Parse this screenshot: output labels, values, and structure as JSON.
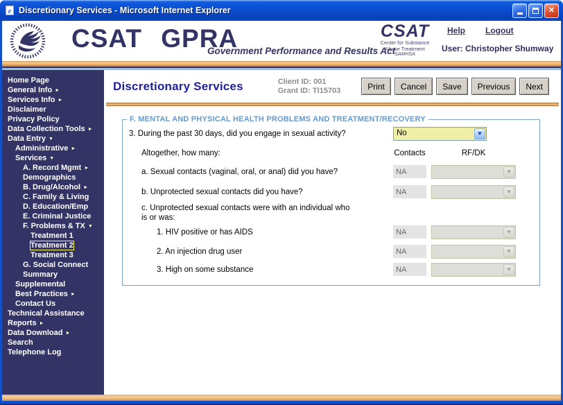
{
  "window": {
    "title": "Discretionary Services - Microsoft Internet Explorer"
  },
  "header": {
    "brand": "CSAT GPRA",
    "tagline": "Government Performance and Results Act",
    "seal": {
      "acronym": "CSAT",
      "line1": "Center for Substance",
      "line2": "Abuse Treatment",
      "line3": "SAMHSA"
    },
    "help": "Help",
    "logout": "Logout",
    "user": "User: Christopher Shumway"
  },
  "sidebar": {
    "items": [
      {
        "label": "Home Page",
        "level": 0,
        "arrow": "",
        "selected": false
      },
      {
        "label": "General Info",
        "level": 0,
        "arrow": "right",
        "selected": false
      },
      {
        "label": "Services Info",
        "level": 0,
        "arrow": "right",
        "selected": false
      },
      {
        "label": "Disclaimer",
        "level": 0,
        "arrow": "",
        "selected": false
      },
      {
        "label": "Privacy Policy",
        "level": 0,
        "arrow": "",
        "selected": false
      },
      {
        "label": "Data Collection Tools",
        "level": 0,
        "arrow": "right",
        "selected": false
      },
      {
        "label": "Data Entry",
        "level": 0,
        "arrow": "down",
        "selected": false
      },
      {
        "label": "Administrative",
        "level": 1,
        "arrow": "right",
        "selected": false
      },
      {
        "label": "Services",
        "level": 1,
        "arrow": "down",
        "selected": false
      },
      {
        "label": "A. Record Mgmt",
        "level": 2,
        "arrow": "right",
        "selected": false
      },
      {
        "label": "Demographics",
        "level": 2,
        "arrow": "",
        "selected": false
      },
      {
        "label": "B. Drug/Alcohol",
        "level": 2,
        "arrow": "right",
        "selected": false
      },
      {
        "label": "C. Family & Living",
        "level": 2,
        "arrow": "",
        "selected": false
      },
      {
        "label": "D. Education/Emp",
        "level": 2,
        "arrow": "",
        "selected": false
      },
      {
        "label": "E. Criminal Justice",
        "level": 2,
        "arrow": "",
        "selected": false
      },
      {
        "label": "F. Problems & TX",
        "level": 2,
        "arrow": "down",
        "selected": false
      },
      {
        "label": "Treatment 1",
        "level": 3,
        "arrow": "",
        "selected": false
      },
      {
        "label": "Treatment 2",
        "level": 3,
        "arrow": "",
        "selected": true
      },
      {
        "label": "Treatment 3",
        "level": 3,
        "arrow": "",
        "selected": false
      },
      {
        "label": "G. Social Connect",
        "level": 2,
        "arrow": "",
        "selected": false
      },
      {
        "label": "Summary",
        "level": 2,
        "arrow": "",
        "selected": false
      },
      {
        "label": "Supplemental",
        "level": 1,
        "arrow": "",
        "selected": false
      },
      {
        "label": "Best Practices",
        "level": 1,
        "arrow": "right",
        "selected": false
      },
      {
        "label": "Contact Us",
        "level": 1,
        "arrow": "",
        "selected": false
      },
      {
        "label": "Technical Assistance",
        "level": 0,
        "arrow": "",
        "selected": false
      },
      {
        "label": "Reports",
        "level": 0,
        "arrow": "right",
        "selected": false
      },
      {
        "label": "Data Download",
        "level": 0,
        "arrow": "right",
        "selected": false
      },
      {
        "label": "Search",
        "level": 0,
        "arrow": "",
        "selected": false
      },
      {
        "label": "Telephone Log",
        "level": 0,
        "arrow": "",
        "selected": false
      }
    ]
  },
  "main": {
    "title": "Discretionary Services",
    "client_id": "Client ID: 001",
    "grant_id": "Grant ID: TI15703",
    "buttons": {
      "print": "Print",
      "cancel": "Cancel",
      "save": "Save",
      "previous": "Previous",
      "next": "Next"
    },
    "form": {
      "legend": "F. MENTAL AND PHYSICAL HEALTH PROBLEMS AND TREATMENT/RECOVERY",
      "question": "3. During the past 30 days, did you engage in sexual activity?",
      "question_value": "No",
      "altogether": "Altogether, how many:",
      "columns": {
        "contacts": "Contacts",
        "rfdk": "RF/DK"
      },
      "rows": [
        {
          "label": "a. Sexual contacts (vaginal, oral, or anal) did you have?",
          "contacts": "NA",
          "rfdk": ""
        },
        {
          "label": "b. Unprotected sexual contacts did you have?",
          "contacts": "NA",
          "rfdk": ""
        }
      ],
      "row_c_line1": "c. Unprotected sexual contacts were with an individual who",
      "row_c_line2": "is or was:",
      "sub_rows": [
        {
          "label": "1. HIV positive or has AIDS",
          "contacts": "NA",
          "rfdk": ""
        },
        {
          "label": "2. An injection drug user",
          "contacts": "NA",
          "rfdk": ""
        },
        {
          "label": "3. High on some substance",
          "contacts": "NA",
          "rfdk": ""
        }
      ]
    }
  },
  "icons": {
    "arrow_right": "►",
    "arrow_down": "▼",
    "dropdown_chevron": "▼"
  },
  "colors": {
    "sidebar_bg": "#333366",
    "brand_navy": "#333366",
    "titlebar_blue": "#0A50D2",
    "legend_blue": "#6699CC",
    "active_dropdown_bg": "#EFEFA8",
    "selected_outline": "#FFFF4D",
    "gold_accent": "#E29A4E",
    "page_title_blue": "#2121A0",
    "id_text_gray": "#8C8C8C"
  }
}
